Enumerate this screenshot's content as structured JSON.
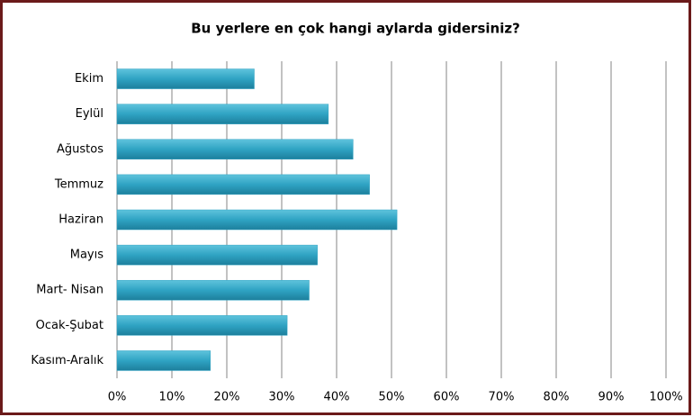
{
  "chart_data": {
    "type": "bar",
    "orientation": "horizontal",
    "title": "Bu yerlere en çok hangi aylarda gidersiniz?",
    "categories": [
      "Ekim",
      "Eylül",
      "Ağustos",
      "Temmuz",
      "Haziran",
      "Mayıs",
      "Mart- Nisan",
      "Ocak-Şubat",
      "Kasım-Aralık"
    ],
    "values": [
      25,
      38.5,
      43,
      46,
      51,
      36.5,
      35,
      31,
      17
    ],
    "color": "#2fa3c3",
    "xlim": [
      0,
      100
    ],
    "xticks": [
      {
        "value": 0,
        "label": "0%"
      },
      {
        "value": 10,
        "label": "10%"
      },
      {
        "value": 20,
        "label": "20%"
      },
      {
        "value": 30,
        "label": "30%"
      },
      {
        "value": 40,
        "label": "40%"
      },
      {
        "value": 50,
        "label": "50%"
      },
      {
        "value": 60,
        "label": "60%"
      },
      {
        "value": 70,
        "label": "70%"
      },
      {
        "value": 80,
        "label": "80%"
      },
      {
        "value": 90,
        "label": "90%"
      },
      {
        "value": 100,
        "label": "100%"
      }
    ],
    "grid": true
  }
}
